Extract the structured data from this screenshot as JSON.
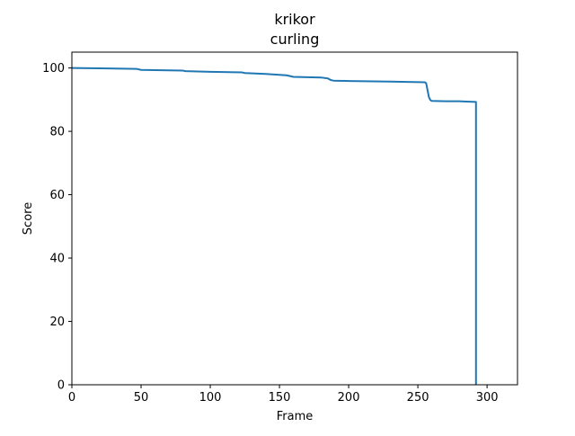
{
  "chart_data": {
    "type": "line",
    "title": "krikor",
    "subtitle": "curling",
    "xlabel": "Frame",
    "ylabel": "Score",
    "xlim": [
      0,
      322
    ],
    "ylim": [
      0,
      105
    ],
    "xticks": [
      0,
      50,
      100,
      150,
      200,
      250,
      300
    ],
    "yticks": [
      0,
      20,
      40,
      60,
      80,
      100
    ],
    "grid": false,
    "colors": {
      "line": "#1f77b4",
      "axes": "#000000",
      "background": "#ffffff"
    },
    "series": [
      {
        "x": [
          0,
          20,
          47,
          50,
          80,
          82,
          100,
          123,
          125,
          140,
          155,
          158,
          160,
          170,
          180,
          185,
          187,
          189,
          200,
          230,
          255,
          256,
          257,
          258,
          259,
          260,
          270,
          280,
          285,
          292,
          292
        ],
        "y": [
          100.0,
          99.9,
          99.7,
          99.4,
          99.2,
          99.0,
          98.8,
          98.6,
          98.4,
          98.1,
          97.7,
          97.4,
          97.2,
          97.1,
          97.0,
          96.7,
          96.2,
          96.0,
          95.9,
          95.7,
          95.5,
          95.2,
          93.0,
          90.8,
          89.9,
          89.6,
          89.5,
          89.5,
          89.4,
          89.3,
          0
        ]
      }
    ]
  }
}
